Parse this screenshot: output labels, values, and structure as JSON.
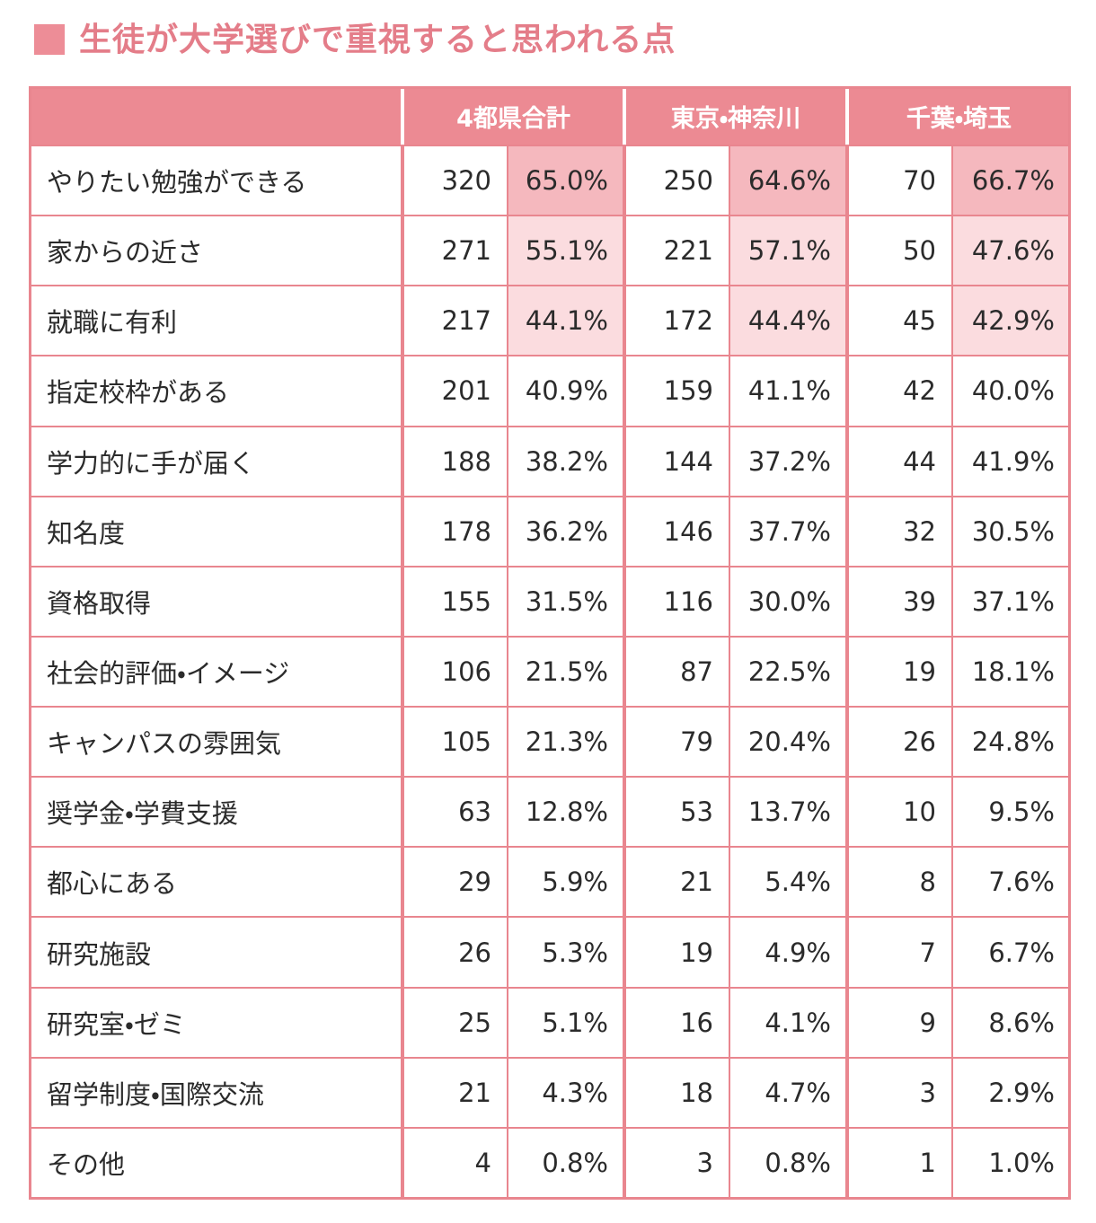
{
  "header": {
    "title": "生徒が大学選びで重視すると思われる点"
  },
  "table": {
    "columns": [
      "4都県合計",
      "東京・神奈川",
      "千葉・埼玉"
    ],
    "rows": [
      {
        "label": "やりたい勉強ができる",
        "cells": [
          320,
          "65.0%",
          250,
          "64.6%",
          70,
          "66.7%"
        ]
      },
      {
        "label": "家からの近さ",
        "cells": [
          271,
          "55.1%",
          221,
          "57.1%",
          50,
          "47.6%"
        ]
      },
      {
        "label": "就職に有利",
        "cells": [
          217,
          "44.1%",
          172,
          "44.4%",
          45,
          "42.9%"
        ]
      },
      {
        "label": "指定校枠がある",
        "cells": [
          201,
          "40.9%",
          159,
          "41.1%",
          42,
          "40.0%"
        ]
      },
      {
        "label": "学力的に手が届く",
        "cells": [
          188,
          "38.2%",
          144,
          "37.2%",
          44,
          "41.9%"
        ]
      },
      {
        "label": "知名度",
        "cells": [
          178,
          "36.2%",
          146,
          "37.7%",
          32,
          "30.5%"
        ]
      },
      {
        "label": "資格取得",
        "cells": [
          155,
          "31.5%",
          116,
          "30.0%",
          39,
          "37.1%"
        ]
      },
      {
        "label": "社会的評価・イメージ",
        "cells": [
          106,
          "21.5%",
          87,
          "22.5%",
          19,
          "18.1%"
        ]
      },
      {
        "label": "キャンパスの雰囲気",
        "cells": [
          105,
          "21.3%",
          79,
          "20.4%",
          26,
          "24.8%"
        ]
      },
      {
        "label": "奨学金・学費支援",
        "cells": [
          63,
          "12.8%",
          53,
          "13.7%",
          10,
          "9.5%"
        ]
      },
      {
        "label": "都心にある",
        "cells": [
          29,
          "5.9%",
          21,
          "5.4%",
          8,
          "7.6%"
        ]
      },
      {
        "label": "研究施設",
        "cells": [
          26,
          "5.3%",
          19,
          "4.9%",
          7,
          "6.7%"
        ]
      },
      {
        "label": "研究室・ゼミ",
        "cells": [
          25,
          "5.1%",
          16,
          "4.1%",
          9,
          "8.6%"
        ]
      },
      {
        "label": "留学制度・国際交流",
        "cells": [
          21,
          "4.3%",
          18,
          "4.7%",
          3,
          "2.9%"
        ]
      },
      {
        "label": "その他",
        "cells": [
          4,
          "0.8%",
          3,
          "0.8%",
          1,
          "1.0%"
        ]
      }
    ]
  }
}
